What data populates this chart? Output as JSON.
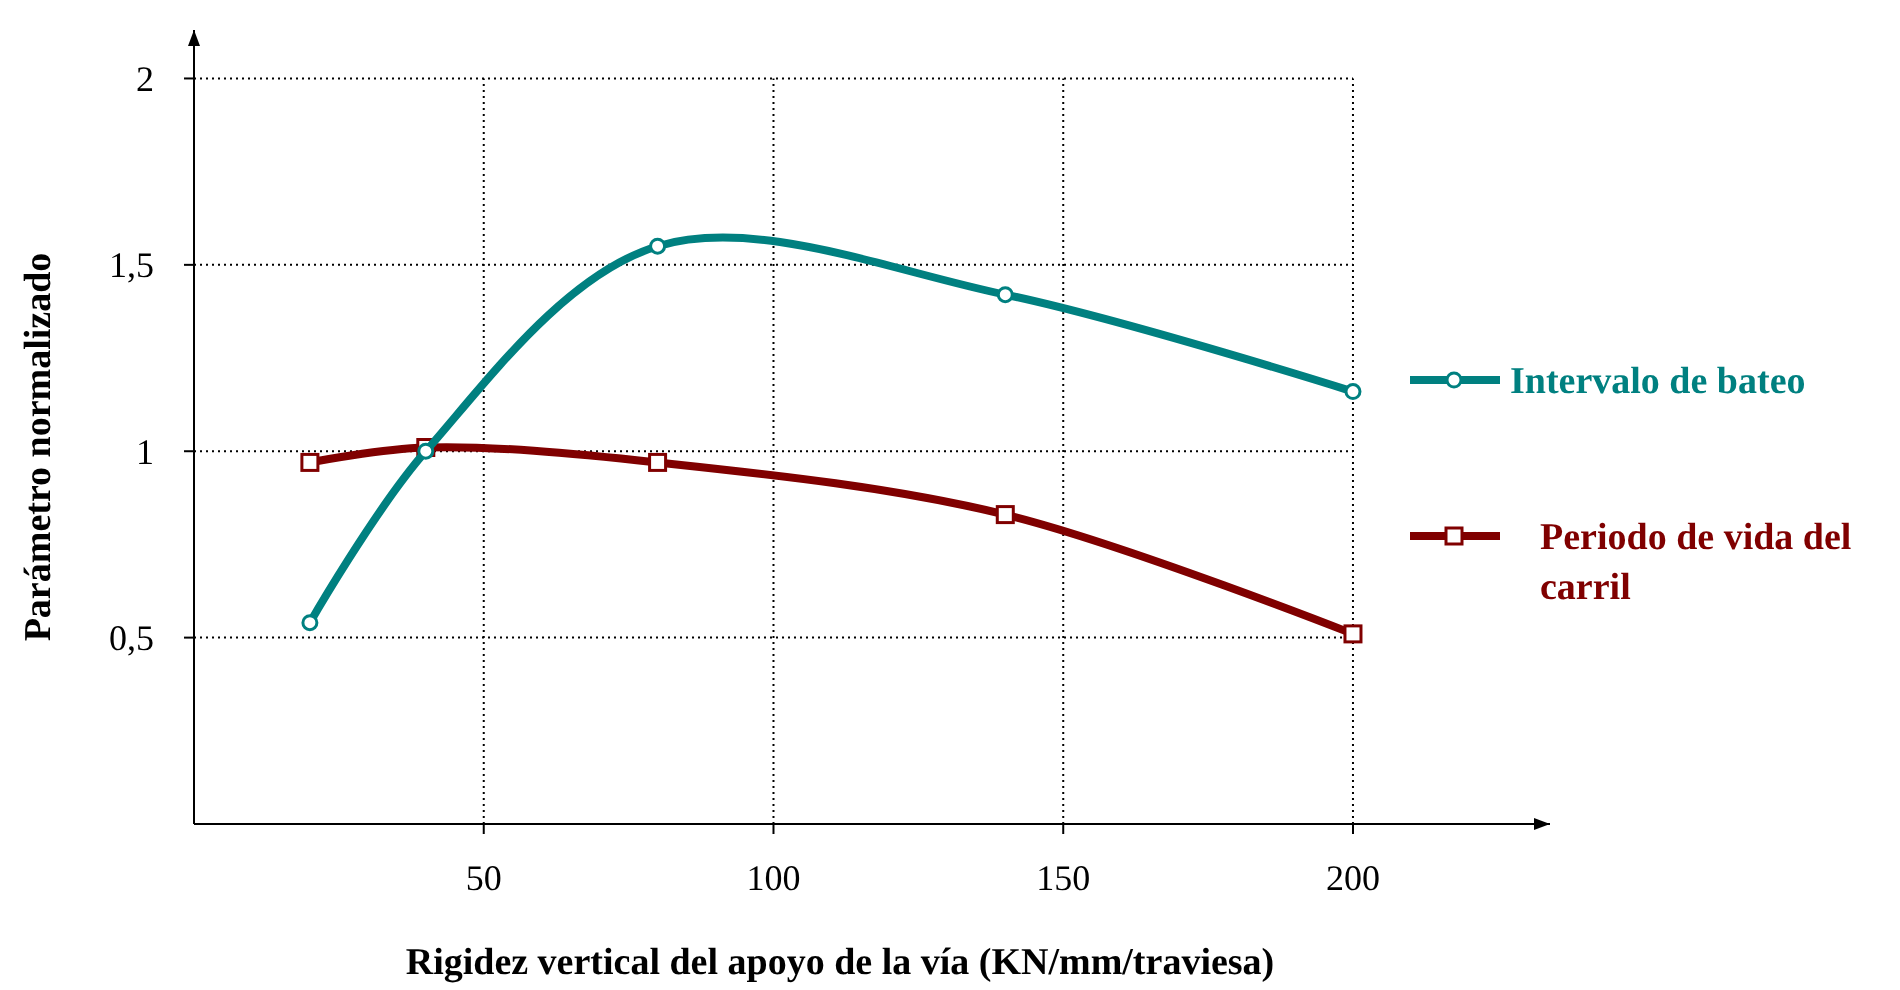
{
  "chart_data": {
    "type": "line",
    "xlabel": "Rigidez vertical del apoyo de la vía (KN/mm/traviesa)",
    "ylabel": "Parámetro normalizado",
    "x": [
      20,
      40,
      80,
      140,
      200
    ],
    "series": [
      {
        "name": "Intervalo de bateo",
        "color": "#008080",
        "marker": "circle",
        "values": [
          0.54,
          1.0,
          1.55,
          1.42,
          1.16
        ]
      },
      {
        "name": "Periodo de vida del carril",
        "color": "#800000",
        "marker": "square",
        "values": [
          0.97,
          1.01,
          0.97,
          0.83,
          0.51
        ]
      }
    ],
    "xlim": [
      0,
      234
    ],
    "xticks": [
      50,
      100,
      150,
      200
    ],
    "ylim": [
      0,
      2.13
    ],
    "yticks": [
      {
        "value": 0.5,
        "label": "0,5"
      },
      1,
      {
        "value": 1.5,
        "label": "1,5"
      },
      2
    ],
    "grid": true,
    "legend": "right",
    "line_style": "solid"
  }
}
